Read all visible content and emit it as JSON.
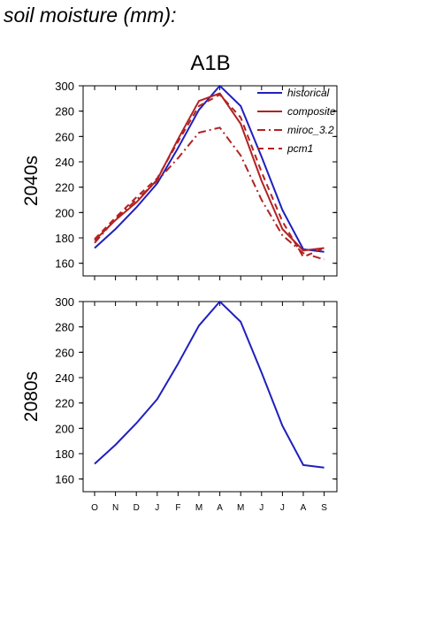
{
  "figure_title": "soil moisture (mm):",
  "scenario": "A1B",
  "colors": {
    "historical": "#1f1fbf",
    "models": "#b22222"
  },
  "chart_data": [
    {
      "type": "line",
      "row_label": "2040s",
      "categories": [
        "O",
        "N",
        "D",
        "J",
        "F",
        "M",
        "A",
        "M",
        "J",
        "J",
        "A",
        "S"
      ],
      "ylim": [
        150,
        300
      ],
      "yticks": [
        160,
        180,
        200,
        220,
        240,
        260,
        280,
        300
      ],
      "legend_position": "top-right",
      "series": [
        {
          "name": "historical",
          "style": "solid",
          "color": "#1f1fbf",
          "values": [
            172,
            187,
            204,
            223,
            251,
            281,
            300,
            284,
            244,
            202,
            171,
            169
          ]
        },
        {
          "name": "composite",
          "style": "solid",
          "color": "#b22222",
          "values": [
            178,
            194,
            208,
            226,
            258,
            288,
            294,
            270,
            225,
            187,
            170,
            172
          ]
        },
        {
          "name": "miroc_3.2",
          "style": "dashdot",
          "color": "#b22222",
          "values": [
            176,
            195,
            210,
            225,
            243,
            263,
            267,
            245,
            210,
            182,
            168,
            163
          ]
        },
        {
          "name": "pcm1",
          "style": "dashed",
          "color": "#b22222",
          "values": [
            179,
            196,
            212,
            227,
            256,
            284,
            293,
            275,
            232,
            193,
            165,
            172
          ]
        }
      ]
    },
    {
      "type": "line",
      "row_label": "2080s",
      "categories": [
        "O",
        "N",
        "D",
        "J",
        "F",
        "M",
        "A",
        "M",
        "J",
        "J",
        "A",
        "S"
      ],
      "ylim": [
        150,
        300
      ],
      "yticks": [
        160,
        180,
        200,
        220,
        240,
        260,
        280,
        300
      ],
      "series": [
        {
          "style": "solid",
          "color": "#1f1fbf",
          "values": [
            172,
            187,
            204,
            223,
            251,
            281,
            300,
            284,
            244,
            202,
            171,
            169
          ]
        }
      ]
    }
  ]
}
